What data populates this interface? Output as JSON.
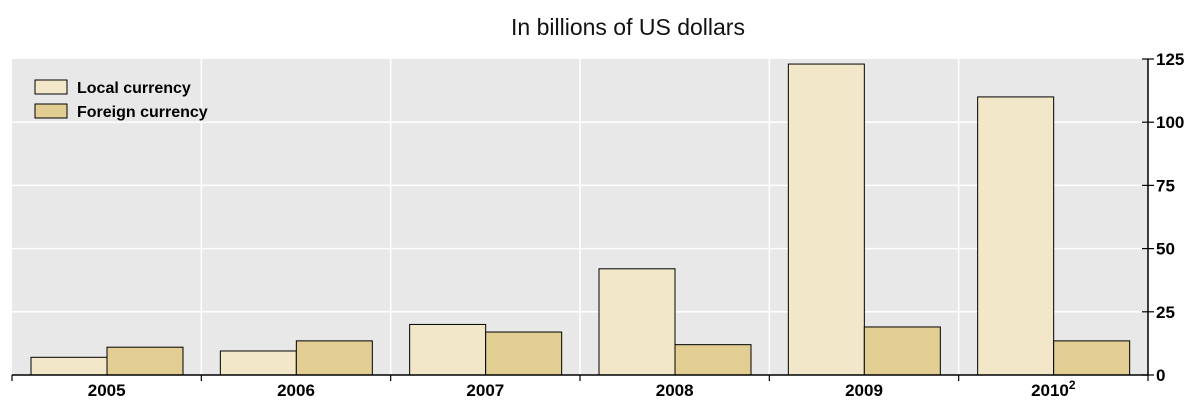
{
  "chart_data": {
    "type": "bar",
    "title": "In billions of US dollars",
    "categories": [
      "2005",
      "2006",
      "2007",
      "2008",
      "2009",
      "2010"
    ],
    "category_superscripts": [
      "",
      "",
      "",
      "",
      "",
      "2"
    ],
    "series": [
      {
        "name": "Local currency",
        "color": "#f2e8c9",
        "values": [
          7,
          9.5,
          20,
          42,
          123,
          110
        ]
      },
      {
        "name": "Foreign currency",
        "color": "#e2cd93",
        "values": [
          11,
          13.5,
          17,
          12,
          19,
          13.5
        ]
      }
    ],
    "ylim": [
      0,
      125
    ],
    "yticks": [
      "0",
      "25",
      "50",
      "75",
      "100",
      "125"
    ],
    "y_axis_side": "right",
    "grid": true,
    "plot_background": "#e8e8e8",
    "legend_position": "top-left"
  }
}
